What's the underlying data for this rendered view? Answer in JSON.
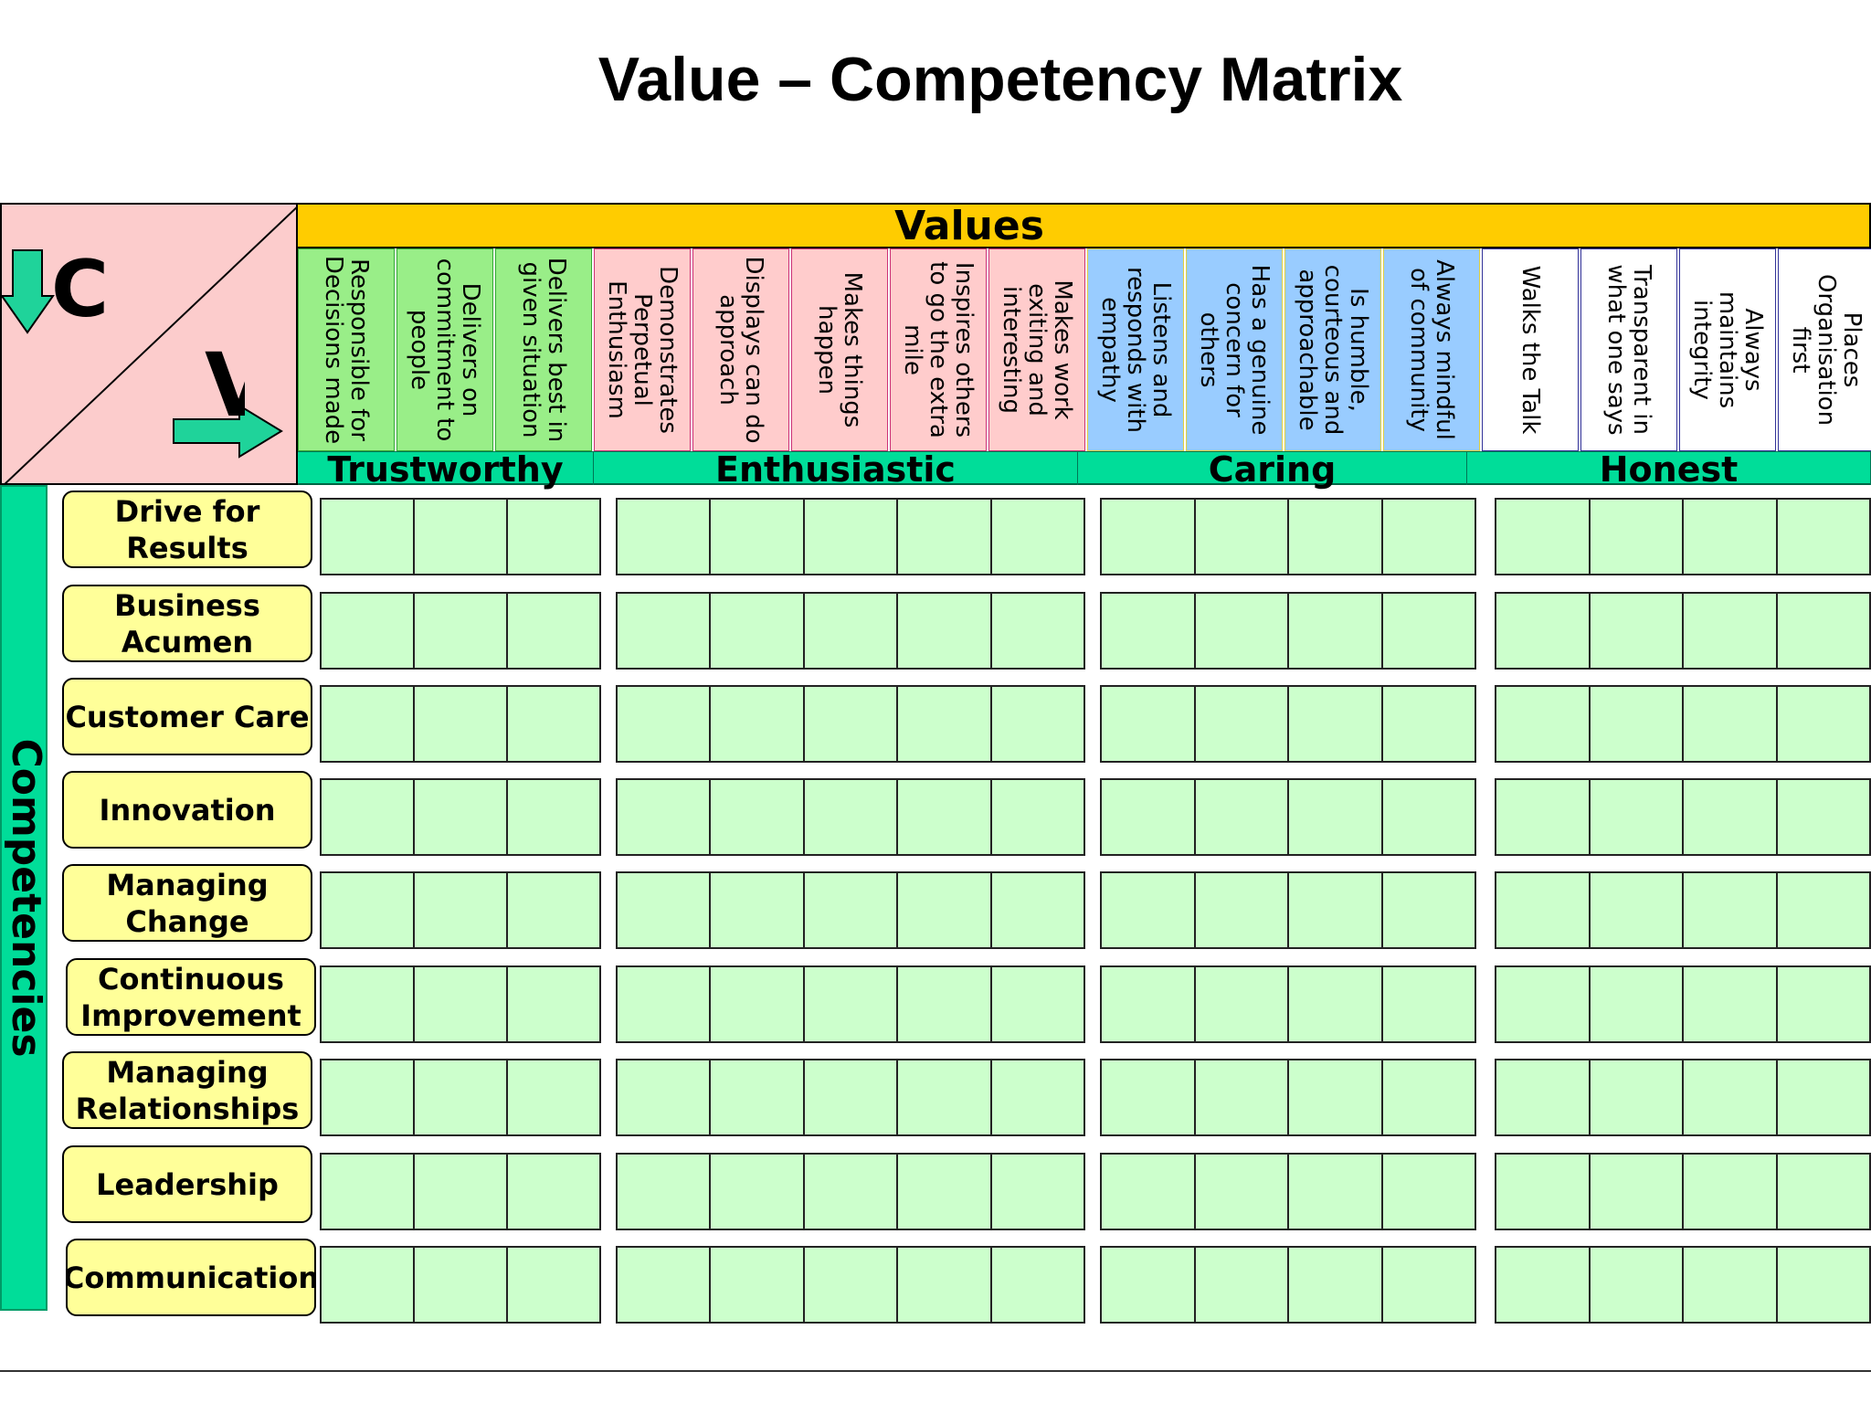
{
  "title": "Value – Competency Matrix",
  "corner": {
    "left_letter": "C",
    "right_letter": "V",
    "arrow_color": "#1fd39a"
  },
  "values_header": "Values",
  "colors": {
    "values_band": "#ffcc00",
    "group_band": "#00dd99",
    "competencies_band": "#00dd99",
    "row_label_fill": "#ffff99",
    "cell_fill": "#ccffcc",
    "corner_fill": "#fccccc"
  },
  "value_groups": [
    {
      "name": "Trustworthy",
      "color": "#99ee88",
      "border": "#33aa33",
      "behaviours": [
        "Responsible for Decisions made",
        "Delivers on commitment to people",
        "Delivers best in given situation"
      ]
    },
    {
      "name": "Enthusiastic",
      "color": "#ffcccc",
      "border": "#cc3377",
      "behaviours": [
        "Demonstrates Perpetual Enthusiasm",
        "Displays can do approach",
        "Makes things happen",
        "Inspires others to go the extra mile",
        "Makes work exiting and interesting"
      ]
    },
    {
      "name": "Caring",
      "color": "#99ccff",
      "border": "#e0d040",
      "behaviours": [
        "Listens and responds with empathy",
        "Has a genuine concern for others",
        "Is humble, courteous and approachable",
        "Always mindful of community"
      ]
    },
    {
      "name": "Honest",
      "color": "#ffffff",
      "border": "#333399",
      "behaviours": [
        "Walks the Talk",
        "Transparent in what one says",
        "Always maintains integrity",
        "Places Organisation first"
      ]
    }
  ],
  "competencies_label": "Competencies",
  "competencies": [
    "Drive for\nResults",
    "Business\nAcumen",
    "Customer Care",
    "Innovation",
    "Managing\nChange",
    "Continuous\nImprovement",
    "Managing\nRelationships",
    "Leadership",
    "Communication"
  ]
}
